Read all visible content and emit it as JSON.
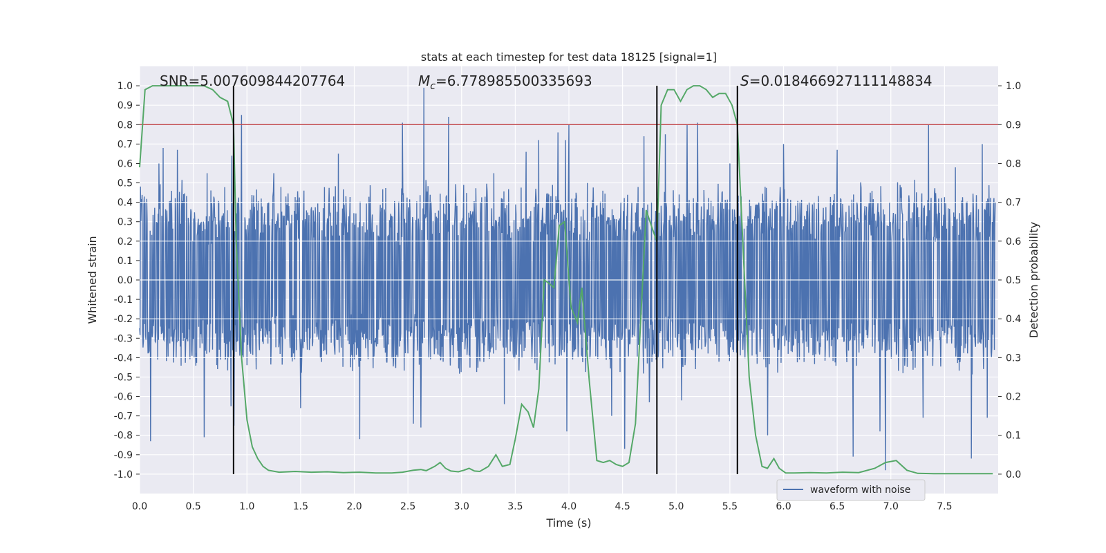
{
  "chart_data": {
    "type": "line",
    "title": "stats at each timestep for test data 18125 [signal=1]",
    "xlabel": "Time (s)",
    "ylabel": "Whitened strain",
    "y2label": "Detection probability",
    "xlim": [
      0,
      8.0
    ],
    "ylim": [
      -1.1,
      1.1
    ],
    "y2lim": [
      -0.05,
      1.05
    ],
    "xticks": [
      "0.0",
      "0.5",
      "1.0",
      "1.5",
      "2.0",
      "2.5",
      "3.0",
      "3.5",
      "4.0",
      "4.5",
      "5.0",
      "5.5",
      "6.0",
      "6.5",
      "7.0",
      "7.5"
    ],
    "yticks": [
      "1.0",
      "0.9",
      "0.8",
      "0.7",
      "0.6",
      "0.5",
      "0.4",
      "0.3",
      "0.2",
      "0.1",
      "0.0",
      "-0.1",
      "-0.2",
      "-0.3",
      "-0.4",
      "-0.5",
      "-0.6",
      "-0.7",
      "-0.8",
      "-0.9",
      "-1.0"
    ],
    "y2ticks": [
      "1.0",
      "0.9",
      "0.8",
      "0.7",
      "0.6",
      "0.5",
      "0.4",
      "0.3",
      "0.2",
      "0.1",
      "0.0"
    ],
    "grid": true,
    "legend_position": "lower-right",
    "annotations": {
      "snr": "SNR=5.007609844207764",
      "mc": "=6.778985500335693",
      "mc_symbol": "M",
      "mc_sub": "c",
      "s": "=0.018466927111148834",
      "s_symbol": "S"
    },
    "threshold": {
      "y2": 0.9,
      "color": "#c44e52"
    },
    "vlines": [
      0.875,
      4.82,
      5.57
    ],
    "series": [
      {
        "name": "waveform with noise",
        "color": "#4c72b0",
        "sample_rate": 256,
        "duration": 7.98,
        "envelope_top": 0.42,
        "envelope_bottom": -0.4,
        "spikes": [
          [
            0.1,
            0.5
          ],
          [
            0.18,
            0.6
          ],
          [
            0.22,
            0.68
          ],
          [
            0.35,
            0.67
          ],
          [
            0.63,
            0.55
          ],
          [
            0.86,
            0.64
          ],
          [
            0.95,
            0.85
          ],
          [
            1.25,
            0.55
          ],
          [
            1.85,
            0.65
          ],
          [
            2.45,
            0.81
          ],
          [
            2.65,
            0.99
          ],
          [
            2.88,
            0.84
          ],
          [
            3.3,
            0.55
          ],
          [
            3.6,
            0.66
          ],
          [
            3.72,
            0.72
          ],
          [
            3.9,
            0.76
          ],
          [
            3.97,
            0.72
          ],
          [
            4.0,
            0.8
          ],
          [
            4.4,
            0.66
          ],
          [
            4.7,
            0.74
          ],
          [
            4.9,
            0.75
          ],
          [
            5.1,
            0.8
          ],
          [
            5.2,
            0.81
          ],
          [
            5.5,
            0.6
          ],
          [
            6.0,
            0.7
          ],
          [
            6.5,
            0.67
          ],
          [
            6.9,
            0.62
          ],
          [
            7.35,
            0.8
          ],
          [
            7.6,
            0.58
          ],
          [
            7.85,
            0.7
          ],
          [
            0.1,
            -0.83
          ],
          [
            0.6,
            -0.81
          ],
          [
            0.85,
            -0.65
          ],
          [
            0.88,
            -0.75
          ],
          [
            1.5,
            -0.66
          ],
          [
            2.05,
            -0.82
          ],
          [
            2.55,
            -0.74
          ],
          [
            2.62,
            -0.76
          ],
          [
            3.4,
            -0.64
          ],
          [
            3.98,
            -0.78
          ],
          [
            4.4,
            -0.7
          ],
          [
            4.52,
            -0.87
          ],
          [
            4.75,
            -0.63
          ],
          [
            5.05,
            -0.62
          ],
          [
            5.85,
            -0.8
          ],
          [
            6.65,
            -0.91
          ],
          [
            6.9,
            -0.78
          ],
          [
            6.95,
            -0.98
          ],
          [
            7.3,
            -0.71
          ],
          [
            7.75,
            -0.92
          ],
          [
            7.9,
            -0.71
          ]
        ]
      },
      {
        "name": "detection probability",
        "color": "#55a868",
        "x": [
          0.0,
          0.05,
          0.12,
          0.2,
          0.3,
          0.4,
          0.5,
          0.6,
          0.68,
          0.75,
          0.82,
          0.875,
          0.9,
          0.95,
          1.0,
          1.05,
          1.1,
          1.15,
          1.2,
          1.3,
          1.45,
          1.6,
          1.75,
          1.9,
          2.05,
          2.2,
          2.35,
          2.45,
          2.55,
          2.62,
          2.67,
          2.75,
          2.8,
          2.85,
          2.9,
          2.97,
          3.02,
          3.07,
          3.12,
          3.17,
          3.25,
          3.32,
          3.38,
          3.45,
          3.5,
          3.56,
          3.62,
          3.67,
          3.72,
          3.77,
          3.82,
          3.86,
          3.91,
          3.96,
          4.02,
          4.08,
          4.12,
          4.19,
          4.26,
          4.32,
          4.38,
          4.44,
          4.5,
          4.56,
          4.62,
          4.67,
          4.72,
          4.78,
          4.82,
          4.86,
          4.92,
          4.98,
          5.04,
          5.1,
          5.16,
          5.22,
          5.28,
          5.34,
          5.4,
          5.46,
          5.52,
          5.57,
          5.62,
          5.68,
          5.74,
          5.8,
          5.85,
          5.91,
          5.96,
          6.02,
          6.1,
          6.25,
          6.4,
          6.55,
          6.7,
          6.85,
          6.95,
          7.05,
          7.15,
          7.25,
          7.4,
          7.6,
          7.8,
          7.95
        ],
        "values": [
          0.79,
          0.99,
          1.0,
          1.0,
          1.0,
          1.0,
          1.0,
          1.0,
          0.99,
          0.97,
          0.96,
          0.9,
          0.6,
          0.3,
          0.14,
          0.07,
          0.04,
          0.02,
          0.01,
          0.005,
          0.007,
          0.005,
          0.006,
          0.004,
          0.005,
          0.003,
          0.003,
          0.005,
          0.01,
          0.012,
          0.009,
          0.02,
          0.03,
          0.015,
          0.008,
          0.006,
          0.01,
          0.015,
          0.008,
          0.007,
          0.02,
          0.05,
          0.02,
          0.025,
          0.09,
          0.18,
          0.16,
          0.12,
          0.22,
          0.5,
          0.49,
          0.48,
          0.64,
          0.65,
          0.43,
          0.39,
          0.48,
          0.24,
          0.035,
          0.03,
          0.035,
          0.025,
          0.02,
          0.03,
          0.13,
          0.4,
          0.68,
          0.63,
          0.6,
          0.95,
          0.99,
          0.99,
          0.96,
          0.99,
          1.0,
          1.0,
          0.99,
          0.97,
          0.98,
          0.98,
          0.95,
          0.9,
          0.6,
          0.25,
          0.1,
          0.02,
          0.015,
          0.04,
          0.015,
          0.003,
          0.003,
          0.004,
          0.003,
          0.005,
          0.004,
          0.015,
          0.03,
          0.035,
          0.01,
          0.002,
          0.001,
          0.001,
          0.001,
          0.001
        ]
      }
    ]
  }
}
